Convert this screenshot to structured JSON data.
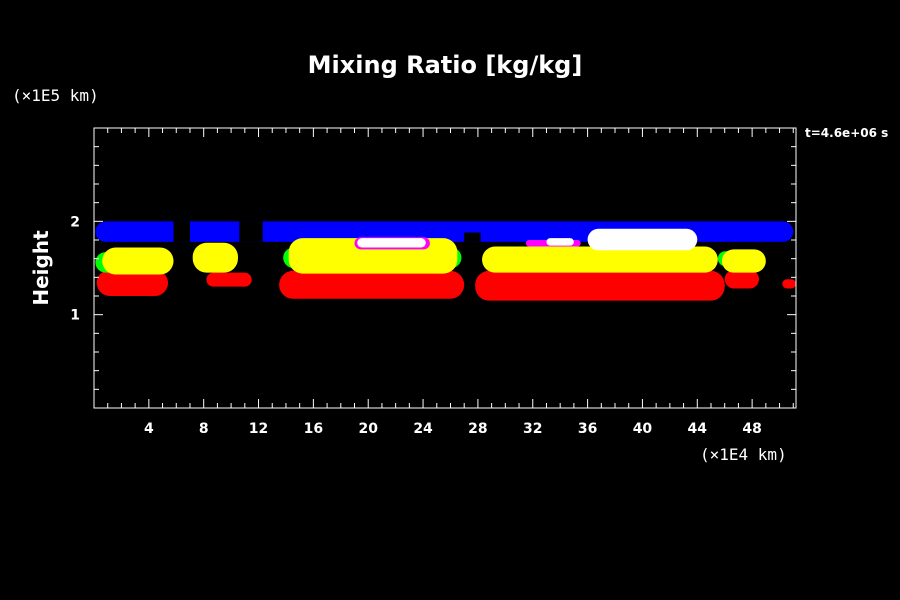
{
  "chart_data": {
    "type": "heatmap",
    "title": "Mixing Ratio [kg/kg]",
    "ylabel": "Height",
    "xunit": "(×1E4 km)",
    "yunit": "(×1E5 km)",
    "time_label": "t=4.6e+06 s",
    "xlim": [
      0,
      51.2
    ],
    "ylim": [
      0,
      3
    ],
    "xticks": [
      4,
      8,
      12,
      16,
      20,
      24,
      28,
      32,
      36,
      40,
      44,
      48
    ],
    "yticks": [
      1,
      2
    ],
    "colors": {
      "background": "#000000",
      "frame": "#ffffff",
      "level_low": "#ff0000",
      "level_mid": "#ffff00",
      "level_edge": "#00ff00",
      "level_high": "#ffffff",
      "level_top": "#0000ff",
      "level_trace": "#ff00ff"
    },
    "regions": [
      {
        "level": "top",
        "x0": 0.1,
        "x1": 51.0,
        "y0": 1.78,
        "y1": 2.0
      },
      {
        "level": "low",
        "x0": 0.2,
        "x1": 5.4,
        "y0": 1.2,
        "y1": 1.48
      },
      {
        "level": "low",
        "x0": 8.2,
        "x1": 11.5,
        "y0": 1.3,
        "y1": 1.45
      },
      {
        "level": "low",
        "x0": 13.5,
        "x1": 27.0,
        "y0": 1.17,
        "y1": 1.47
      },
      {
        "level": "low",
        "x0": 27.8,
        "x1": 46.0,
        "y0": 1.15,
        "y1": 1.47
      },
      {
        "level": "low",
        "x0": 46.0,
        "x1": 48.5,
        "y0": 1.28,
        "y1": 1.48
      },
      {
        "level": "low",
        "x0": 50.2,
        "x1": 51.2,
        "y0": 1.28,
        "y1": 1.38
      },
      {
        "level": "edge",
        "x0": 0.1,
        "x1": 5.5,
        "y0": 1.45,
        "y1": 1.67
      },
      {
        "level": "edge",
        "x0": 13.8,
        "x1": 26.8,
        "y0": 1.5,
        "y1": 1.72
      },
      {
        "level": "edge",
        "x0": 45.5,
        "x1": 48.7,
        "y0": 1.52,
        "y1": 1.68
      },
      {
        "level": "mid",
        "x0": 0.6,
        "x1": 5.8,
        "y0": 1.43,
        "y1": 1.72
      },
      {
        "level": "mid",
        "x0": 7.2,
        "x1": 10.5,
        "y0": 1.45,
        "y1": 1.77
      },
      {
        "level": "mid",
        "x0": 14.2,
        "x1": 26.5,
        "y0": 1.44,
        "y1": 1.82
      },
      {
        "level": "mid",
        "x0": 28.3,
        "x1": 45.5,
        "y0": 1.45,
        "y1": 1.73
      },
      {
        "level": "mid",
        "x0": 45.8,
        "x1": 49.0,
        "y0": 1.45,
        "y1": 1.7
      },
      {
        "level": "trace",
        "x0": 19.0,
        "x1": 24.5,
        "y0": 1.7,
        "y1": 1.83
      },
      {
        "level": "high",
        "x0": 19.2,
        "x1": 24.2,
        "y0": 1.72,
        "y1": 1.82
      },
      {
        "level": "high",
        "x0": 36.0,
        "x1": 44.0,
        "y0": 1.69,
        "y1": 1.92
      },
      {
        "level": "trace",
        "x0": 31.5,
        "x1": 35.5,
        "y0": 1.73,
        "y1": 1.8
      },
      {
        "level": "high",
        "x0": 33.0,
        "x1": 35.0,
        "y0": 1.74,
        "y1": 1.82
      }
    ],
    "gaps": [
      {
        "x0": 5.8,
        "x1": 7.0,
        "y0": 1.78,
        "y1": 2.0
      },
      {
        "x0": 10.6,
        "x1": 12.3,
        "y0": 1.78,
        "y1": 2.0
      },
      {
        "x0": 27.0,
        "x1": 28.2,
        "y0": 1.78,
        "y1": 1.88
      }
    ],
    "grid": false
  }
}
